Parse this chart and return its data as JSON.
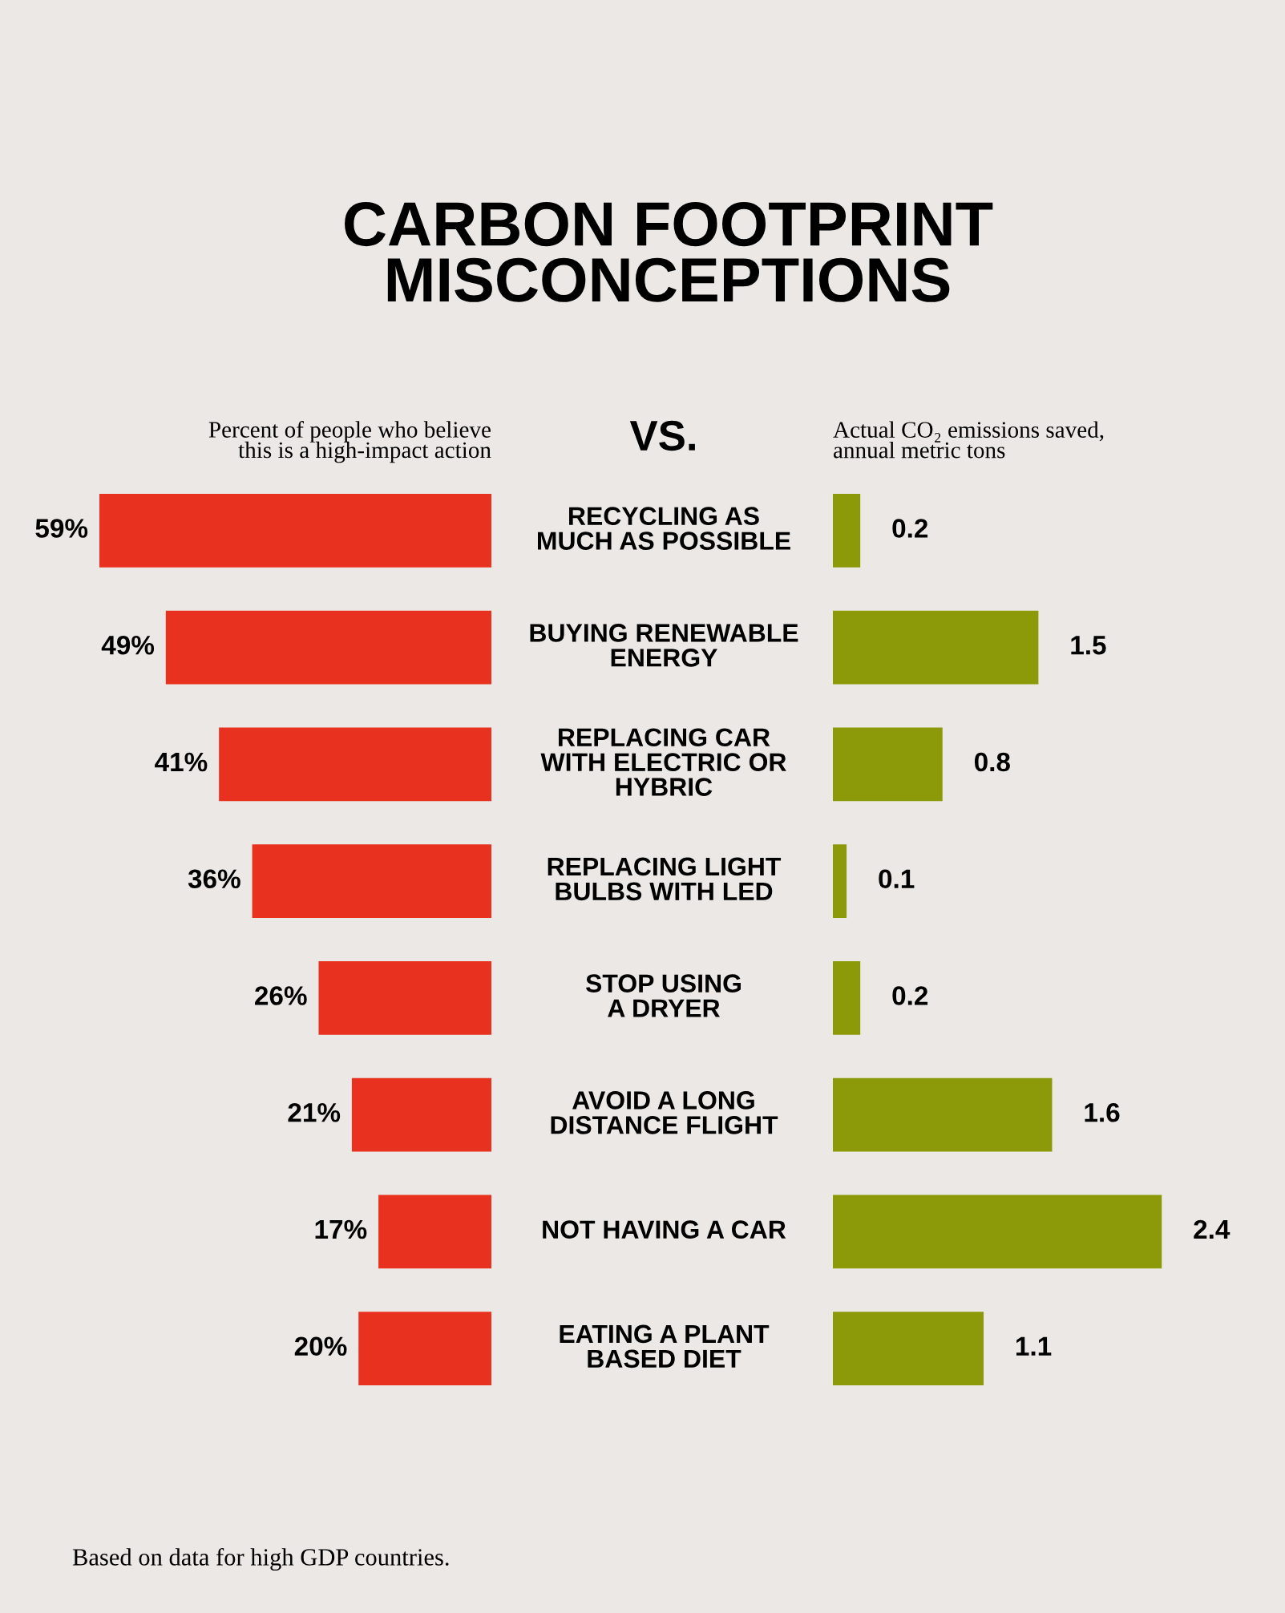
{
  "chart_data": [
    {
      "type": "bar",
      "orientation": "horizontal",
      "title": "CARBON FOOTPRINT\nMISCONCEPTIONS",
      "xlabel": "Percent of people who believe\nthis is a high-impact action",
      "categories": [
        "RECYCLING AS\nMUCH AS POSSIBLE",
        "BUYING RENEWABLE\nENERGY",
        "REPLACING CAR\nWITH ELECTRIC OR\nHYBRIC",
        "REPLACING LIGHT\nBULBS WITH LED",
        "STOP USING\nA DRYER",
        "AVOID A LONG\nDISTANCE FLIGHT",
        "NOT HAVING A CAR",
        "EATING A PLANT\nBASED DIET"
      ],
      "values": [
        59,
        49,
        41,
        36,
        26,
        21,
        17,
        20
      ],
      "value_labels": [
        "59%",
        "49%",
        "41%",
        "36%",
        "26%",
        "21%",
        "17%",
        "20%"
      ],
      "color": "#e8321f",
      "annotations": [
        "VS.",
        "Based on data for high GDP countries."
      ]
    },
    {
      "type": "bar",
      "orientation": "horizontal",
      "xlabel": "Actual CO₂ emissions saved,\nannual metric tons",
      "categories": [
        null,
        null,
        null,
        null,
        null,
        null,
        null,
        null
      ],
      "values": [
        0.2,
        1.5,
        0.8,
        0.1,
        0.2,
        1.6,
        2.4,
        1.1
      ],
      "data_labels": true,
      "color": "#8c9a0a"
    }
  ]
}
